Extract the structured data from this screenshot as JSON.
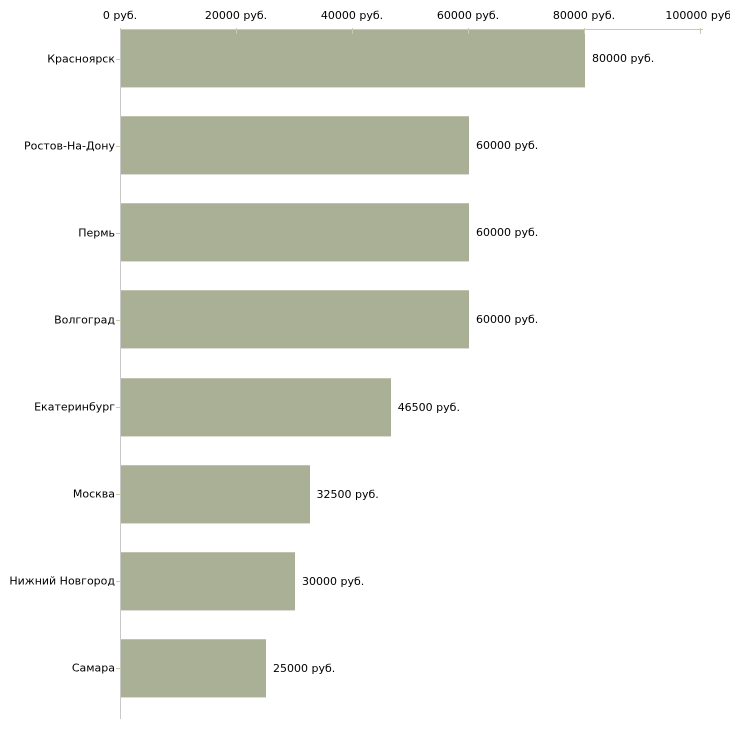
{
  "chart_data": {
    "type": "bar",
    "orientation": "horizontal",
    "title": "",
    "xlabel": "",
    "ylabel": "",
    "unit": "руб.",
    "categories": [
      "Красноярск",
      "Ростов-На-Дону",
      "Пермь",
      "Волгоград",
      "Екатеринбург",
      "Москва",
      "Нижний Новгород",
      "Самара"
    ],
    "values": [
      80000,
      60000,
      60000,
      60000,
      46500,
      32500,
      30000,
      25000
    ],
    "value_labels": [
      "80000 руб.",
      "60000 руб.",
      "60000 руб.",
      "60000 руб.",
      "46500 руб.",
      "32500 руб.",
      "30000 руб.",
      "25000 руб."
    ],
    "x_axis": {
      "position": "top",
      "min": 0,
      "max": 100000,
      "tick_interval": 20000,
      "tick_values": [
        0,
        20000,
        40000,
        60000,
        80000,
        100000
      ],
      "tick_labels": [
        "0 руб.",
        "20000 руб.",
        "40000 руб.",
        "60000 руб.",
        "80000 руб.",
        "100000 руб."
      ]
    },
    "grid": false,
    "legend": false,
    "colors": {
      "bar_fill": "#a9b096",
      "bar_top_edge": "#c1c3ae",
      "bar_bottom_edge": "#dddcd6",
      "axis_tick": "#ccc9ac",
      "axis_left_line": "#c9c9c9",
      "text": "#000000",
      "background": "#ffffff"
    }
  }
}
